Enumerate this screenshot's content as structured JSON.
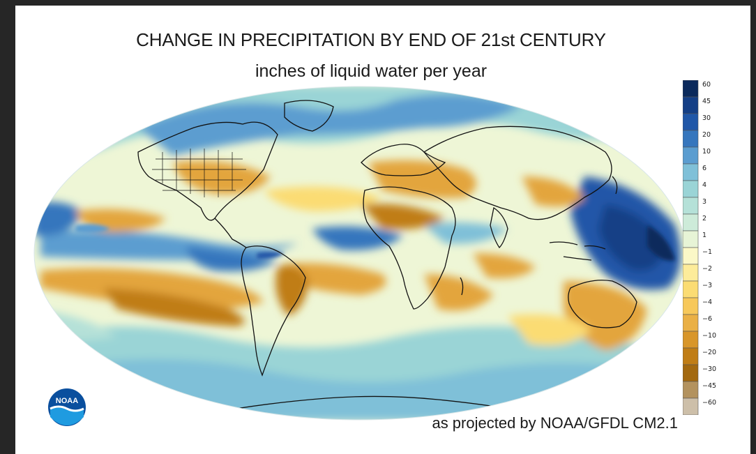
{
  "title": "CHANGE IN PRECIPITATION BY END OF 21st CENTURY",
  "subtitle": "inches of liquid water per year",
  "credit": "as projected by NOAA/GFDL CM2.1",
  "logo_text": "NOAA",
  "legend": {
    "labels": [
      "60",
      "45",
      "30",
      "20",
      "10",
      "6",
      "4",
      "3",
      "2",
      "1",
      "−1",
      "−2",
      "−3",
      "−4",
      "−6",
      "−10",
      "−20",
      "−30",
      "−45",
      "−60"
    ],
    "colors": [
      "#0b2a5c",
      "#143f86",
      "#2057a8",
      "#3676bd",
      "#5b9dd0",
      "#7fc0d8",
      "#9ad4d6",
      "#b5e1d8",
      "#cdebd9",
      "#e7f4d6",
      "#fbf8c7",
      "#fdec9a",
      "#fbdc73",
      "#f7c85a",
      "#eab045",
      "#d8962a",
      "#c07d15",
      "#a3690f",
      "#b3925e",
      "#cdbfa9"
    ]
  },
  "colors": {
    "wet_strong": "#143f86",
    "wet": "#4f8fc9",
    "wet_light": "#9ad4d6",
    "neutral": "#eef5d0",
    "dry_light": "#fbdc73",
    "dry": "#e3a53c",
    "dry_strong": "#c07d15",
    "background": "#262626",
    "panel": "#ffffff"
  }
}
